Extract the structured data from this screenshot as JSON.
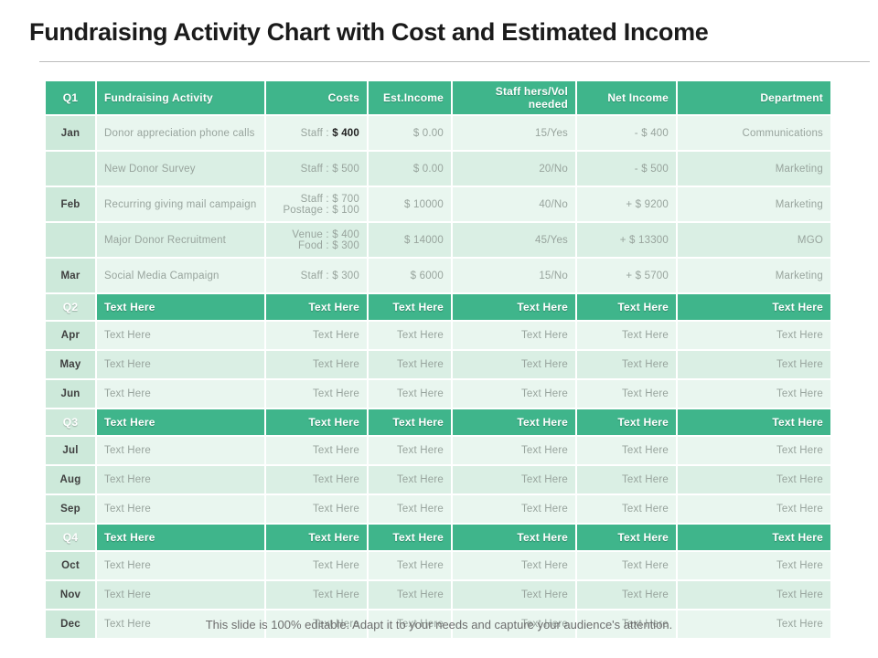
{
  "title": "Fundraising Activity Chart with Cost and Estimated Income",
  "footer": "This slide is 100% editable. Adapt it to your needs and capture your audience's attention.",
  "colors": {
    "accent_green": "#3fb58b",
    "month_column_mint": "#cde9da",
    "row_light": "#e9f6ef",
    "row_dark": "#daefe4",
    "data_text": "#98a49d",
    "title_text": "#1b1b1b"
  },
  "table": {
    "header": [
      "Q1",
      "Fundraising Activity",
      "Costs",
      "Est.Income",
      "Staff hers/Vol\nneeded",
      "Net Income",
      "Department"
    ],
    "rows": [
      {
        "kind": "data",
        "shade": "light",
        "month": "Jan",
        "activity": "Donor appreciation phone calls",
        "costs": [
          "Staff : $ 400"
        ],
        "costs_highlight": "$ 400",
        "est": "$ 0.00",
        "staff": "15/Yes",
        "net": "- $ 400",
        "dept": "Communications"
      },
      {
        "kind": "data",
        "shade": "dark",
        "month": "",
        "activity": "New Donor Survey",
        "costs": [
          "Staff : $ 500"
        ],
        "est": "$ 0.00",
        "staff": "20/No",
        "net": "- $ 500",
        "dept": "Marketing"
      },
      {
        "kind": "data",
        "shade": "light",
        "month": "Feb",
        "activity": "Recurring giving mail campaign",
        "costs": [
          "Staff : $ 700",
          "Postage : $ 100"
        ],
        "est": "$ 10000",
        "staff": "40/No",
        "net": "+ $ 9200",
        "dept": "Marketing"
      },
      {
        "kind": "data",
        "shade": "dark",
        "month": "",
        "activity": "Major Donor Recruitment",
        "costs": [
          "Venue : $ 400",
          "Food : $ 300"
        ],
        "est": "$ 14000",
        "staff": "45/Yes",
        "net": "+ $ 13300",
        "dept": "MGO"
      },
      {
        "kind": "data",
        "shade": "light",
        "month": "Mar",
        "activity": "Social Media Campaign",
        "costs": [
          "Staff : $ 300"
        ],
        "est": "$ 6000",
        "staff": "15/No",
        "net": "+ $ 5700",
        "dept": "Marketing"
      },
      {
        "kind": "quarter",
        "month": "Q2",
        "activity": "Text Here",
        "costs": [
          "Text Here"
        ],
        "est": "Text Here",
        "staff": "Text Here",
        "net": "Text Here",
        "dept": "Text Here"
      },
      {
        "kind": "data",
        "shade": "light",
        "month": "Apr",
        "activity": "Text Here",
        "costs": [
          "Text Here"
        ],
        "est": "Text Here",
        "staff": "Text Here",
        "net": "Text Here",
        "dept": "Text Here"
      },
      {
        "kind": "data",
        "shade": "dark",
        "month": "May",
        "activity": "Text Here",
        "costs": [
          "Text Here"
        ],
        "est": "Text Here",
        "staff": "Text Here",
        "net": "Text Here",
        "dept": "Text Here"
      },
      {
        "kind": "data",
        "shade": "light",
        "month": "Jun",
        "activity": "Text Here",
        "costs": [
          "Text Here"
        ],
        "est": "Text Here",
        "staff": "Text Here",
        "net": "Text Here",
        "dept": "Text Here"
      },
      {
        "kind": "quarter",
        "month": "Q3",
        "activity": "Text Here",
        "costs": [
          "Text Here"
        ],
        "est": "Text Here",
        "staff": "Text Here",
        "net": "Text Here",
        "dept": "Text Here"
      },
      {
        "kind": "data",
        "shade": "light",
        "month": "Jul",
        "activity": "Text Here",
        "costs": [
          "Text Here"
        ],
        "est": "Text Here",
        "staff": "Text Here",
        "net": "Text Here",
        "dept": "Text Here"
      },
      {
        "kind": "data",
        "shade": "dark",
        "month": "Aug",
        "activity": "Text Here",
        "costs": [
          "Text Here"
        ],
        "est": "Text Here",
        "staff": "Text Here",
        "net": "Text Here",
        "dept": "Text Here"
      },
      {
        "kind": "data",
        "shade": "light",
        "month": "Sep",
        "activity": "Text Here",
        "costs": [
          "Text Here"
        ],
        "est": "Text Here",
        "staff": "Text Here",
        "net": "Text Here",
        "dept": "Text Here"
      },
      {
        "kind": "quarter",
        "month": "Q4",
        "activity": "Text Here",
        "costs": [
          "Text Here"
        ],
        "est": "Text Here",
        "staff": "Text Here",
        "net": "Text Here",
        "dept": "Text Here"
      },
      {
        "kind": "data",
        "shade": "light",
        "month": "Oct",
        "activity": "Text Here",
        "costs": [
          "Text Here"
        ],
        "est": "Text Here",
        "staff": "Text Here",
        "net": "Text Here",
        "dept": "Text Here"
      },
      {
        "kind": "data",
        "shade": "dark",
        "month": "Nov",
        "activity": "Text Here",
        "costs": [
          "Text Here"
        ],
        "est": "Text Here",
        "staff": "Text Here",
        "net": "Text Here",
        "dept": "Text Here"
      },
      {
        "kind": "data",
        "shade": "light",
        "month": "Dec",
        "activity": "Text Here",
        "costs": [
          "Text Here"
        ],
        "est": "Text Here",
        "staff": "Text Here",
        "net": "Text Here",
        "dept": "Text Here"
      }
    ]
  }
}
